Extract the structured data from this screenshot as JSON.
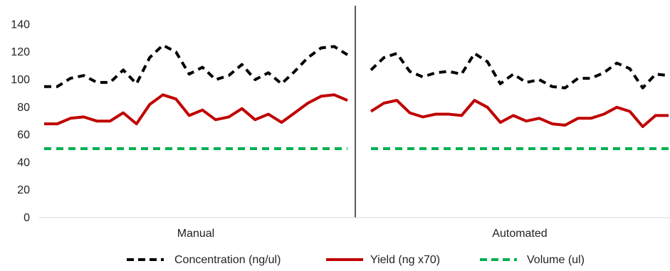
{
  "chart_data": {
    "type": "line",
    "title": "",
    "xlabel": "",
    "ylabel": "",
    "ylim": [
      0,
      150
    ],
    "yticks": [
      0,
      20,
      40,
      60,
      80,
      100,
      120,
      140
    ],
    "grid": false,
    "legend_position": "bottom",
    "groups": [
      "Manual",
      "Automated"
    ],
    "series": [
      {
        "name": "Concentration (ng/ul)",
        "color": "#000000",
        "style": "dashed",
        "groups": [
          [
            95,
            95,
            101,
            103,
            98,
            98,
            107,
            97,
            116,
            125,
            120,
            104,
            109,
            100,
            103,
            111,
            100,
            105,
            97,
            106,
            116,
            123,
            124,
            118
          ],
          [
            107,
            116,
            119,
            106,
            102,
            105,
            106,
            104,
            119,
            113,
            97,
            104,
            98,
            100,
            95,
            94,
            101,
            101,
            105,
            112,
            108,
            94,
            104,
            103
          ]
        ]
      },
      {
        "name": "Yield (ng x70)",
        "color": "#c00000",
        "style": "solid",
        "groups": [
          [
            68,
            68,
            72,
            73,
            70,
            70,
            76,
            68,
            82,
            89,
            86,
            74,
            78,
            71,
            73,
            79,
            71,
            75,
            69,
            76,
            83,
            88,
            89,
            85
          ],
          [
            77,
            83,
            85,
            76,
            73,
            75,
            75,
            74,
            85,
            80,
            69,
            74,
            70,
            72,
            68,
            67,
            72,
            72,
            75,
            80,
            77,
            66,
            74,
            74
          ]
        ]
      },
      {
        "name": "Volume (ul)",
        "color": "#00b050",
        "style": "dashed",
        "groups": [
          [
            50,
            50,
            50,
            50,
            50,
            50,
            50,
            50,
            50,
            50,
            50,
            50,
            50,
            50,
            50,
            50,
            50,
            50,
            50,
            50,
            50,
            50,
            50,
            50
          ],
          [
            50,
            50,
            50,
            50,
            50,
            50,
            50,
            50,
            50,
            50,
            50,
            50,
            50,
            50,
            50,
            50,
            50,
            50,
            50,
            50,
            50,
            50,
            50,
            50
          ]
        ]
      }
    ]
  }
}
